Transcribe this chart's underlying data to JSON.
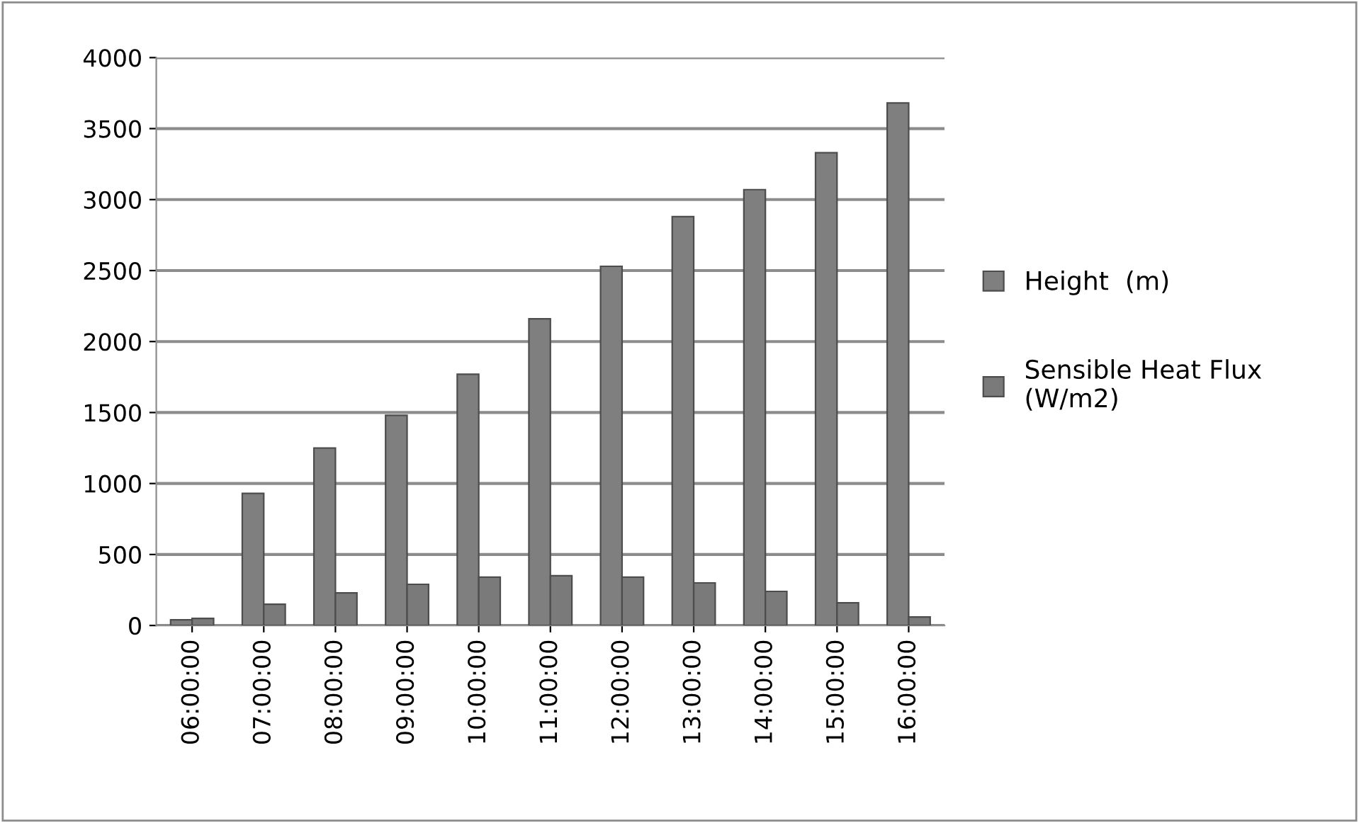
{
  "chart_data": {
    "type": "bar",
    "categories": [
      "06:00:00",
      "07:00:00",
      "08:00:00",
      "09:00:00",
      "10:00:00",
      "11:00:00",
      "12:00:00",
      "13:00:00",
      "14:00:00",
      "15:00:00",
      "16:00:00"
    ],
    "series": [
      {
        "name": "Height  (m)",
        "color": "#7f7f7f",
        "values": [
          40,
          930,
          1250,
          1480,
          1770,
          2160,
          2530,
          2880,
          3070,
          3330,
          3680
        ]
      },
      {
        "name": "Sensible Heat Flux (W/m2)",
        "color": "#7a7a7a",
        "values": [
          50,
          150,
          230,
          290,
          340,
          350,
          340,
          300,
          240,
          160,
          60
        ]
      }
    ],
    "ylim": [
      0,
      4000
    ],
    "yticks": [
      0,
      500,
      1000,
      1500,
      2000,
      2500,
      3000,
      3500,
      4000
    ],
    "grid": "y",
    "legend": "right"
  }
}
